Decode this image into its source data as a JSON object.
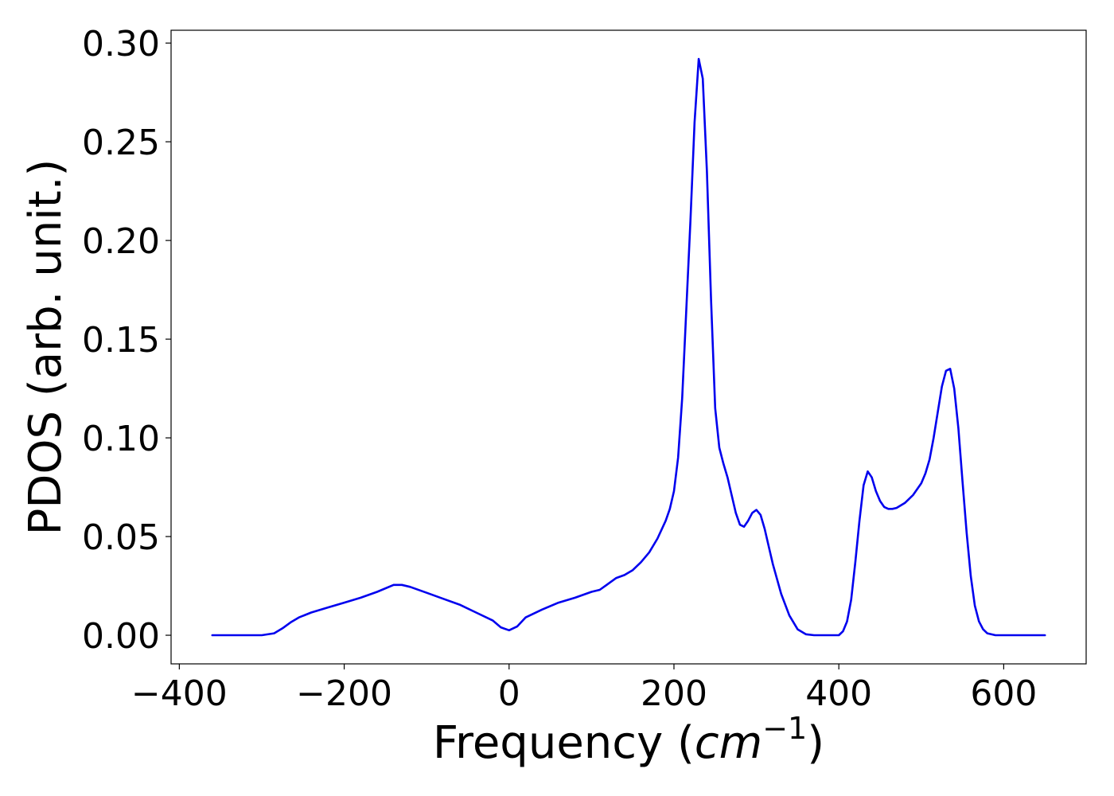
{
  "chart_data": {
    "type": "line",
    "xlabel": "Frequency (",
    "xlabel_math_base": "cm",
    "xlabel_math_exp": "−1",
    "xlabel_close": ")",
    "ylabel": "PDOS (arb. unit.)",
    "xlim": [
      -410,
      700
    ],
    "ylim": [
      -0.0145,
      0.3065
    ],
    "x_ticks": [
      -400,
      -200,
      0,
      200,
      400,
      600
    ],
    "x_tick_labels": [
      "−400",
      "−200",
      "0",
      "200",
      "400",
      "600"
    ],
    "y_ticks": [
      0.0,
      0.05,
      0.1,
      0.15,
      0.2,
      0.25,
      0.3
    ],
    "y_tick_labels": [
      "0.00",
      "0.05",
      "0.10",
      "0.15",
      "0.20",
      "0.25",
      "0.30"
    ],
    "grid": false,
    "legend": "none",
    "series": [
      {
        "color": "#0000ee",
        "x": [
          -360,
          -300,
          -285,
          -275,
          -265,
          -255,
          -240,
          -220,
          -200,
          -180,
          -160,
          -140,
          -130,
          -120,
          -100,
          -80,
          -60,
          -40,
          -20,
          -10,
          0,
          10,
          20,
          40,
          60,
          80,
          100,
          110,
          120,
          130,
          140,
          150,
          160,
          170,
          180,
          190,
          195,
          200,
          205,
          210,
          215,
          220,
          225,
          230,
          235,
          240,
          245,
          250,
          255,
          260,
          265,
          270,
          275,
          280,
          285,
          290,
          295,
          300,
          305,
          310,
          315,
          320,
          330,
          340,
          350,
          360,
          370,
          380,
          390,
          400,
          405,
          410,
          415,
          420,
          425,
          430,
          435,
          440,
          445,
          450,
          455,
          460,
          465,
          470,
          480,
          490,
          500,
          505,
          510,
          515,
          520,
          525,
          530,
          535,
          540,
          545,
          550,
          555,
          560,
          565,
          570,
          575,
          580,
          590,
          600,
          620,
          650
        ],
        "y": [
          0.0,
          0.0,
          0.001,
          0.0035,
          0.0065,
          0.009,
          0.0115,
          0.014,
          0.0165,
          0.019,
          0.022,
          0.0255,
          0.0255,
          0.0245,
          0.0215,
          0.0185,
          0.0155,
          0.0115,
          0.0075,
          0.004,
          0.0025,
          0.0045,
          0.009,
          0.013,
          0.0165,
          0.019,
          0.022,
          0.023,
          0.026,
          0.029,
          0.0305,
          0.033,
          0.037,
          0.042,
          0.049,
          0.058,
          0.064,
          0.073,
          0.09,
          0.12,
          0.165,
          0.21,
          0.26,
          0.292,
          0.282,
          0.235,
          0.17,
          0.115,
          0.095,
          0.087,
          0.08,
          0.071,
          0.062,
          0.056,
          0.055,
          0.058,
          0.062,
          0.0635,
          0.061,
          0.054,
          0.045,
          0.036,
          0.021,
          0.01,
          0.003,
          0.0005,
          0.0,
          0.0,
          0.0,
          0.0,
          0.002,
          0.007,
          0.018,
          0.037,
          0.058,
          0.076,
          0.083,
          0.08,
          0.073,
          0.068,
          0.065,
          0.064,
          0.064,
          0.0645,
          0.067,
          0.071,
          0.077,
          0.082,
          0.089,
          0.1,
          0.113,
          0.126,
          0.134,
          0.135,
          0.125,
          0.105,
          0.078,
          0.052,
          0.03,
          0.015,
          0.007,
          0.003,
          0.001,
          0.0,
          0.0,
          0.0,
          0.0
        ]
      }
    ]
  }
}
